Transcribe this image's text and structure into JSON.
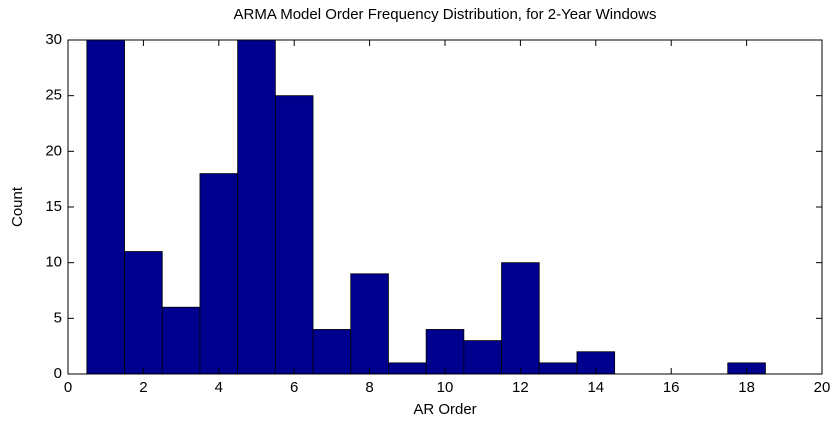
{
  "chart_data": {
    "type": "histogram",
    "title": "ARMA Model Order Frequency Distribution, for 2-Year Windows",
    "xlabel": "AR Order",
    "ylabel": "Count",
    "bins": [
      0.5,
      1.5,
      2.5,
      3.5,
      4.5,
      5.5,
      6.5,
      7.5,
      8.5,
      9.5,
      10.5,
      11.5,
      12.5,
      13.5,
      14.5,
      15.5,
      16.5,
      17.5,
      18.5
    ],
    "values": [
      30,
      11,
      6,
      18,
      30,
      25,
      4,
      9,
      1,
      4,
      3,
      10,
      1,
      2,
      0,
      0,
      0,
      1
    ],
    "color": "#00008f",
    "xlim": [
      0,
      20
    ],
    "ylim": [
      0,
      30
    ],
    "xticks": [
      0,
      2,
      4,
      6,
      8,
      10,
      12,
      14,
      16,
      18,
      20
    ],
    "yticks": [
      0,
      5,
      10,
      15,
      20,
      25,
      30
    ]
  }
}
